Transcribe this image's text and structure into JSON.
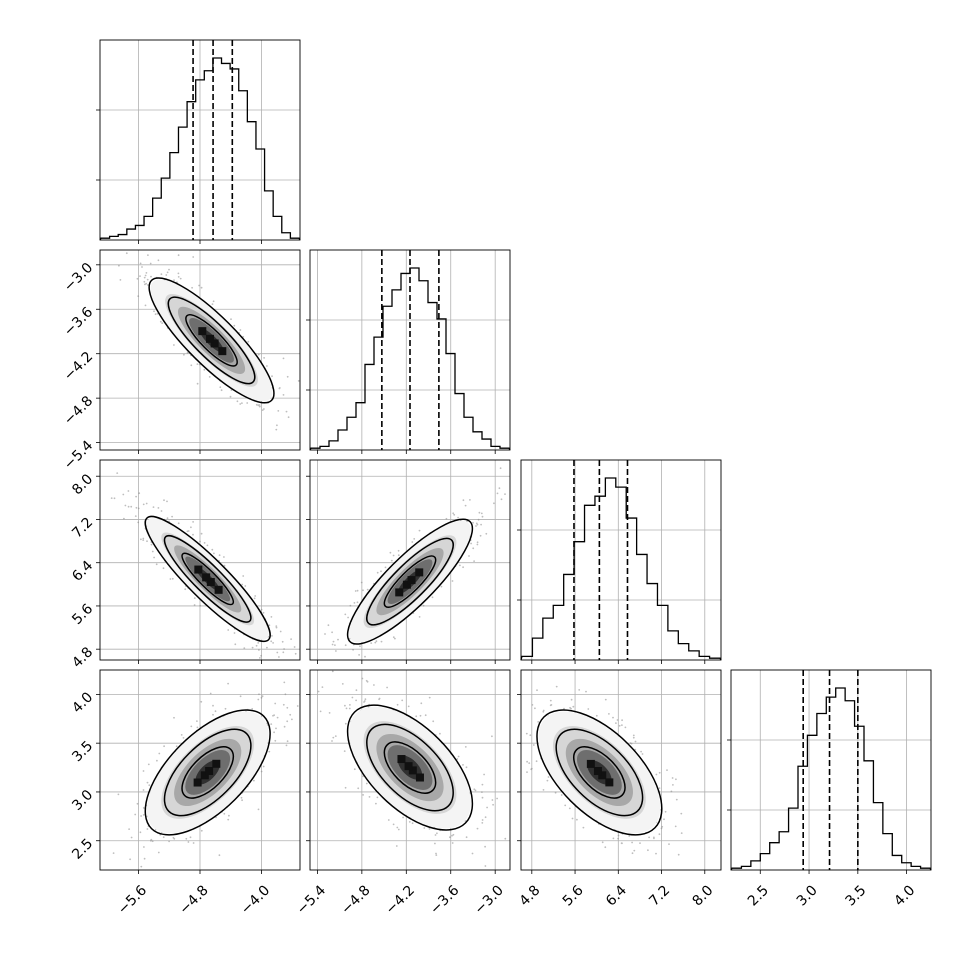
{
  "chart_data": {
    "type": "corner",
    "title": "",
    "parameters": [
      {
        "range": [
          -6.1,
          -3.5
        ],
        "ticks": [
          -5.6,
          -4.8,
          -4.0
        ],
        "tick_labels": [
          "−5.6",
          "−4.8",
          "−4.0"
        ],
        "quantiles": [
          -4.89,
          -4.63,
          -4.38
        ],
        "histogram": [
          0.01,
          0.02,
          0.03,
          0.06,
          0.08,
          0.13,
          0.23,
          0.34,
          0.48,
          0.62,
          0.76,
          0.88,
          0.93,
          1.0,
          0.97,
          0.94,
          0.82,
          0.65,
          0.5,
          0.27,
          0.13,
          0.04,
          0.01
        ]
      },
      {
        "range": [
          -5.5,
          -2.8
        ],
        "ticks": [
          -5.4,
          -4.8,
          -4.2,
          -3.6,
          -3.0
        ],
        "tick_labels": [
          "−5.4",
          "−4.8",
          "−4.2",
          "−3.6",
          "−3.0"
        ],
        "quantiles": [
          -4.53,
          -4.15,
          -3.76
        ],
        "histogram": [
          0.01,
          0.02,
          0.05,
          0.11,
          0.18,
          0.26,
          0.47,
          0.62,
          0.79,
          0.88,
          0.97,
          1.0,
          0.93,
          0.81,
          0.72,
          0.53,
          0.31,
          0.18,
          0.1,
          0.06,
          0.02,
          0.01
        ]
      },
      {
        "range": [
          4.6,
          8.3
        ],
        "ticks": [
          4.8,
          5.6,
          6.4,
          7.2,
          8.0
        ],
        "tick_labels": [
          "4.8",
          "5.6",
          "6.4",
          "7.2",
          "8.0"
        ],
        "quantiles": [
          5.58,
          6.05,
          6.57
        ],
        "histogram": [
          0.02,
          0.12,
          0.23,
          0.3,
          0.47,
          0.65,
          0.85,
          0.9,
          1.0,
          0.95,
          0.78,
          0.58,
          0.42,
          0.3,
          0.16,
          0.09,
          0.05,
          0.02,
          0.01
        ]
      },
      {
        "range": [
          2.2,
          4.25
        ],
        "ticks": [
          2.5,
          3.0,
          3.5,
          4.0
        ],
        "tick_labels": [
          "2.5",
          "3.0",
          "3.5",
          "4.0"
        ],
        "quantiles": [
          2.94,
          3.21,
          3.5
        ],
        "histogram": [
          0.01,
          0.02,
          0.05,
          0.09,
          0.15,
          0.21,
          0.34,
          0.57,
          0.74,
          0.86,
          0.95,
          1.0,
          0.93,
          0.79,
          0.6,
          0.37,
          0.2,
          0.08,
          0.04,
          0.02,
          0.01
        ]
      }
    ],
    "pairs": [
      {
        "row": 1,
        "col": 0,
        "mode": [
          -4.65,
          -4.02
        ],
        "correlation": -0.85
      },
      {
        "row": 2,
        "col": 0,
        "mode": [
          -4.7,
          6.1
        ],
        "correlation": -0.9
      },
      {
        "row": 2,
        "col": 1,
        "mode": [
          -4.15,
          6.05
        ],
        "correlation": 0.85
      },
      {
        "row": 3,
        "col": 0,
        "mode": [
          -4.7,
          3.2
        ],
        "correlation": 0.62
      },
      {
        "row": 3,
        "col": 1,
        "mode": [
          -4.15,
          3.25
        ],
        "correlation": -0.58
      },
      {
        "row": 3,
        "col": 2,
        "mode": [
          6.05,
          3.2
        ],
        "correlation": -0.58
      }
    ],
    "left_labeled_rows": [
      1,
      2,
      3
    ],
    "bottom_labeled_row": 3,
    "grid": true,
    "contour_levels": 3,
    "quantile_line_style": "dashed"
  }
}
